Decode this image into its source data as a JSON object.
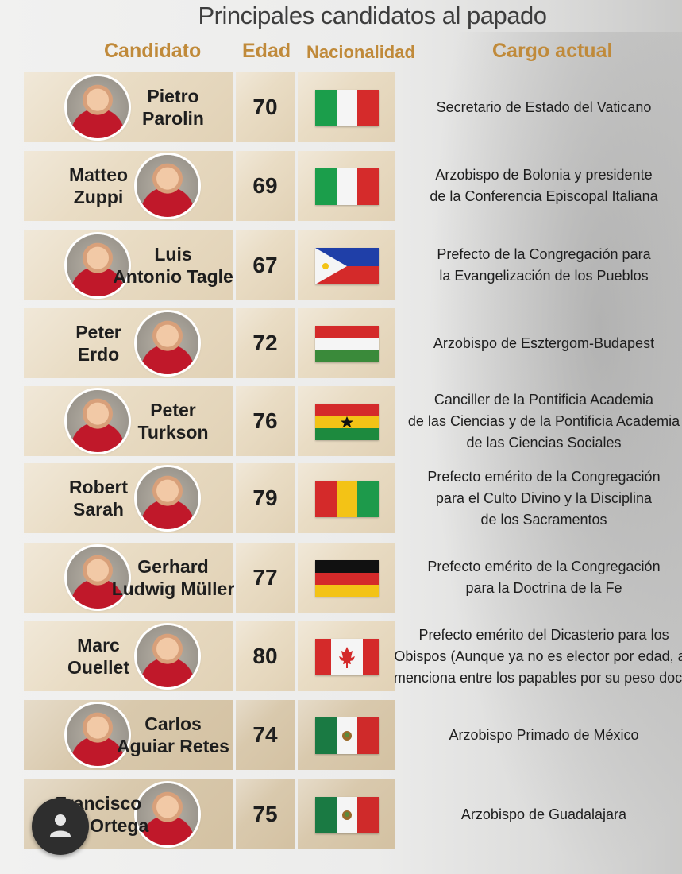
{
  "title": "Principales candidatos al papado",
  "headers": {
    "candidato": "Candidato",
    "edad": "Edad",
    "nacionalidad": "Nacionalidad",
    "cargo": "Cargo actual"
  },
  "colors": {
    "header_gold": "#c08a3a",
    "cell": "#e9dcc4"
  },
  "candidates": [
    {
      "name": "Pietro\nParolin",
      "age": "70",
      "flag": "italy-flag",
      "role": "Secretario de Estado del Vaticano"
    },
    {
      "name": "Matteo\nZuppi",
      "age": "69",
      "flag": "italy-flag",
      "role": "Arzobispo de Bolonia y presidente\nde la Conferencia Episcopal Italiana"
    },
    {
      "name": "Luis\nAntonio Tagle",
      "age": "67",
      "flag": "philippines-flag",
      "role": "Prefecto de la Congregación para\nla Evangelización de los Pueblos"
    },
    {
      "name": "Peter\nErdo",
      "age": "72",
      "flag": "hungary-flag",
      "role": "Arzobispo de Esztergom-Budapest"
    },
    {
      "name": "Peter\nTurkson",
      "age": "76",
      "flag": "ghana-flag",
      "role": "Canciller de la Pontificia Academia\nde las Ciencias y de la Pontificia Academia\nde las Ciencias Sociales"
    },
    {
      "name": "Robert\nSarah",
      "age": "79",
      "flag": "guinea-flag",
      "role": "Prefecto emérito de la Congregación\npara el Culto Divino y la Disciplina\nde los Sacramentos"
    },
    {
      "name": "Gerhard\nLudwig Müller",
      "age": "77",
      "flag": "germany-flag",
      "role": "Prefecto emérito de la Congregación\npara la Doctrina de la Fe"
    },
    {
      "name": "Marc\nOuellet",
      "age": "80",
      "flag": "canada-flag",
      "role": "Prefecto emérito del Dicasterio para los\nObispos (Aunque ya no es elector por edad, aú\nmenciona entre los papables por su peso doctri"
    },
    {
      "name": "Carlos\nAguiar Retes",
      "age": "74",
      "flag": "mexico-flag",
      "role": "Arzobispo Primado de México"
    },
    {
      "name": "Francisco\nbles Ortega",
      "age": "75",
      "flag": "mexico-flag",
      "role": "Arzobispo de Guadalajara"
    }
  ]
}
